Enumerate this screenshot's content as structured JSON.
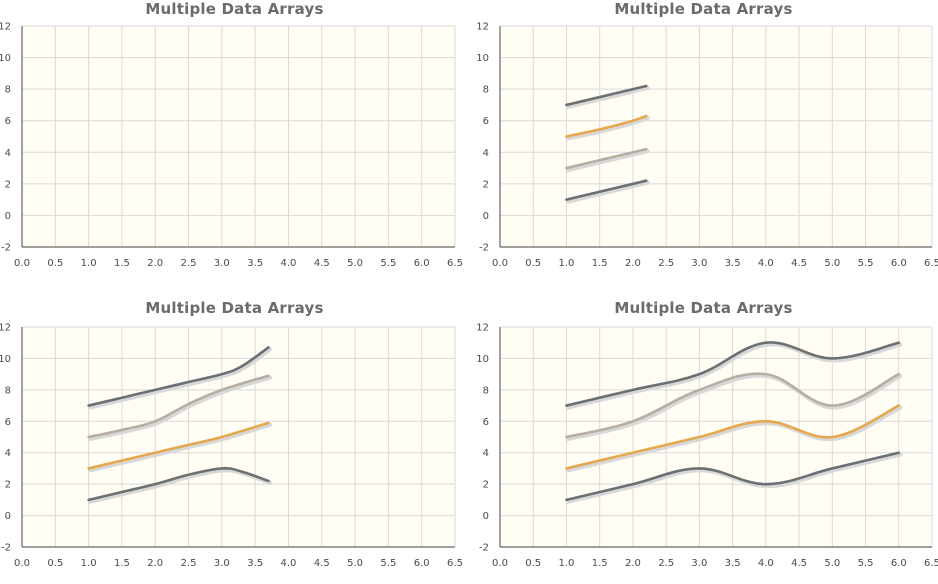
{
  "colors": {
    "plot_background": "#fffdf4",
    "grid": "#d9d9d9",
    "axis": "#666666",
    "series_dark": "#6b7172",
    "series_tan": "#b8ada2",
    "series_orange": "#e6a84e",
    "shadow": "#d8d8d8"
  },
  "chart_data": [
    {
      "type": "line",
      "title": "Multiple Data Arrays",
      "xlim": [
        0,
        6.5
      ],
      "ylim": [
        -2,
        12
      ],
      "x_ticks": [
        "0.0",
        "0.5",
        "1.0",
        "1.5",
        "2.0",
        "2.5",
        "3.0",
        "3.5",
        "4.0",
        "4.5",
        "5.0",
        "5.5",
        "6.0",
        "6.5"
      ],
      "y_ticks": [
        "-2",
        "0",
        "2",
        "4",
        "6",
        "8",
        "10",
        "12"
      ],
      "grid": true,
      "series": []
    },
    {
      "type": "line",
      "title": "Multiple Data Arrays",
      "xlim": [
        0,
        6.5
      ],
      "ylim": [
        -2,
        12
      ],
      "x_ticks": [
        "0.0",
        "0.5",
        "1.0",
        "1.5",
        "2.0",
        "2.5",
        "3.0",
        "3.5",
        "4.0",
        "4.5",
        "5.0",
        "5.5",
        "6.0",
        "6.5"
      ],
      "y_ticks": [
        "-2",
        "0",
        "2",
        "4",
        "6",
        "8",
        "10",
        "12"
      ],
      "grid": true,
      "series": [
        {
          "color": "#6b7172",
          "x": [
            1.0,
            2.2
          ],
          "y": [
            1.0,
            2.2
          ]
        },
        {
          "color": "#b8ada2",
          "x": [
            1.0,
            2.2
          ],
          "y": [
            3.0,
            4.2
          ]
        },
        {
          "color": "#e6a84e",
          "x": [
            1.0,
            1.5,
            2.0,
            2.2
          ],
          "y": [
            5.0,
            5.45,
            6.0,
            6.3
          ]
        },
        {
          "color": "#6b7172",
          "x": [
            1.0,
            2.2
          ],
          "y": [
            7.0,
            8.2
          ]
        }
      ]
    },
    {
      "type": "line",
      "title": "Multiple Data Arrays",
      "xlim": [
        0,
        6.5
      ],
      "ylim": [
        -2,
        12
      ],
      "x_ticks": [
        "0.0",
        "0.5",
        "1.0",
        "1.5",
        "2.0",
        "2.5",
        "3.0",
        "3.5",
        "4.0",
        "4.5",
        "5.0",
        "5.5",
        "6.0",
        "6.5"
      ],
      "y_ticks": [
        "-2",
        "0",
        "2",
        "4",
        "6",
        "8",
        "10",
        "12"
      ],
      "grid": true,
      "series": [
        {
          "color": "#6b7172",
          "x": [
            1.0,
            1.5,
            2.0,
            2.5,
            3.0,
            3.3,
            3.7
          ],
          "y": [
            1.0,
            1.5,
            2.0,
            2.6,
            3.0,
            2.8,
            2.2
          ]
        },
        {
          "color": "#e6a84e",
          "x": [
            1.0,
            1.5,
            2.0,
            2.5,
            3.0,
            3.7
          ],
          "y": [
            3.0,
            3.5,
            4.0,
            4.5,
            5.0,
            5.9
          ]
        },
        {
          "color": "#b8ada2",
          "x": [
            1.0,
            1.5,
            2.0,
            2.5,
            3.0,
            3.7
          ],
          "y": [
            5.0,
            5.45,
            6.0,
            7.1,
            8.0,
            8.9
          ]
        },
        {
          "color": "#6b7172",
          "x": [
            1.0,
            1.5,
            2.0,
            2.5,
            3.0,
            3.3,
            3.7
          ],
          "y": [
            7.0,
            7.5,
            8.0,
            8.5,
            9.0,
            9.5,
            10.7
          ]
        }
      ]
    },
    {
      "type": "line",
      "title": "Multiple Data Arrays",
      "xlim": [
        0,
        6.5
      ],
      "ylim": [
        -2,
        12
      ],
      "x_ticks": [
        "0.0",
        "0.5",
        "1.0",
        "1.5",
        "2.0",
        "2.5",
        "3.0",
        "3.5",
        "4.0",
        "4.5",
        "5.0",
        "5.5",
        "6.0",
        "6.5"
      ],
      "y_ticks": [
        "-2",
        "0",
        "2",
        "4",
        "6",
        "8",
        "10",
        "12"
      ],
      "grid": true,
      "series": [
        {
          "color": "#6b7172",
          "x": [
            1,
            2,
            3,
            4,
            5,
            6
          ],
          "y": [
            1,
            2,
            3,
            2,
            3,
            4
          ]
        },
        {
          "color": "#e6a84e",
          "x": [
            1,
            2,
            3,
            4,
            5,
            6
          ],
          "y": [
            3,
            4,
            5,
            6,
            5,
            7
          ]
        },
        {
          "color": "#b8ada2",
          "x": [
            1,
            2,
            3,
            4,
            5,
            6
          ],
          "y": [
            5,
            6,
            8,
            9,
            7,
            9
          ]
        },
        {
          "color": "#6b7172",
          "x": [
            1,
            2,
            3,
            4,
            5,
            6
          ],
          "y": [
            7,
            8,
            9,
            11,
            10,
            11
          ]
        }
      ]
    }
  ]
}
